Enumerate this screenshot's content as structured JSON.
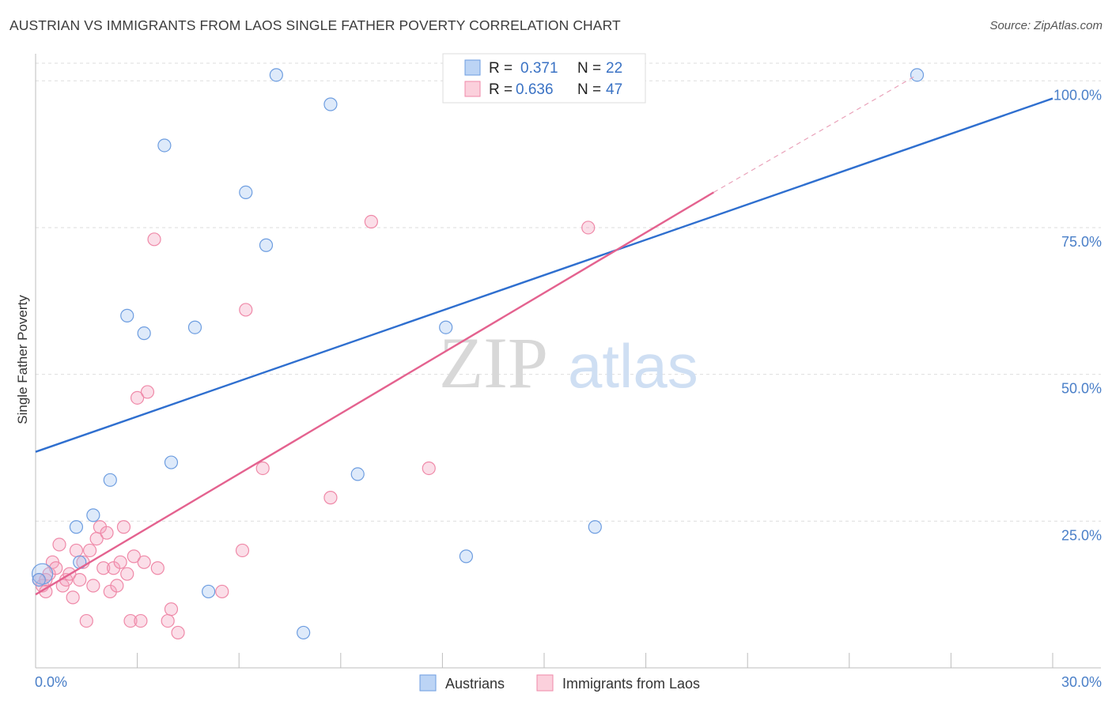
{
  "title": "AUSTRIAN VS IMMIGRANTS FROM LAOS SINGLE FATHER POVERTY CORRELATION CHART",
  "source": "Source: ZipAtlas.com",
  "watermark": {
    "zip": "ZIP",
    "atlas": "atlas"
  },
  "legend_top": [
    {
      "r_label": "R =",
      "r_value": "0.371",
      "n_label": "N =",
      "n_value": "22"
    },
    {
      "r_label": "R =",
      "r_value": "0.636",
      "n_label": "N =",
      "n_value": "47"
    }
  ],
  "legend_bottom": [
    "Austrians",
    "Immigrants from Laos"
  ],
  "colors": {
    "austrians": "#6d9de0",
    "laos": "#ef89a8",
    "austrians_line": "#2f6fcf",
    "laos_line": "#e4628f",
    "tick": "#4a7fc8"
  },
  "chart_data": {
    "type": "scatter",
    "title": "AUSTRIAN VS IMMIGRANTS FROM LAOS SINGLE FATHER POVERTY CORRELATION CHART",
    "ylabel": "Single Father Poverty",
    "xlim": [
      0,
      30
    ],
    "ylim": [
      0,
      103
    ],
    "x_tick_labels": [
      "0.0%",
      "30.0%"
    ],
    "y_ticks": [
      25,
      50,
      75,
      100
    ],
    "y_tick_labels": [
      "25.0%",
      "50.0%",
      "75.0%",
      "100.0%"
    ],
    "grid": "horizontal dashed",
    "legend_placement": "top-center",
    "series": [
      {
        "name": "Austrians",
        "r": 0.371,
        "n": 22,
        "trend": {
          "x": [
            0,
            30
          ],
          "y": [
            36.8,
            97
          ]
        },
        "points": [
          {
            "x": 0.2,
            "y": 16
          },
          {
            "x": 1.3,
            "y": 18
          },
          {
            "x": 1.2,
            "y": 24
          },
          {
            "x": 1.7,
            "y": 26
          },
          {
            "x": 2.2,
            "y": 32
          },
          {
            "x": 2.7,
            "y": 60
          },
          {
            "x": 3.2,
            "y": 57
          },
          {
            "x": 3.8,
            "y": 89
          },
          {
            "x": 4.0,
            "y": 35
          },
          {
            "x": 4.7,
            "y": 58
          },
          {
            "x": 5.1,
            "y": 13
          },
          {
            "x": 6.2,
            "y": 81
          },
          {
            "x": 6.8,
            "y": 72
          },
          {
            "x": 7.1,
            "y": 101
          },
          {
            "x": 7.9,
            "y": 6
          },
          {
            "x": 8.7,
            "y": 96
          },
          {
            "x": 9.5,
            "y": 33
          },
          {
            "x": 12.1,
            "y": 58
          },
          {
            "x": 12.7,
            "y": 19
          },
          {
            "x": 16.5,
            "y": 24
          },
          {
            "x": 26.0,
            "y": 101
          },
          {
            "x": 0.1,
            "y": 15
          }
        ]
      },
      {
        "name": "Immigrants from Laos",
        "r": 0.636,
        "n": 47,
        "trend": {
          "x": [
            0,
            20
          ],
          "y": [
            12.5,
            81
          ]
        },
        "trend_extension": {
          "x": [
            20,
            26
          ],
          "y": [
            81,
            101
          ]
        },
        "points": [
          {
            "x": 0.1,
            "y": 15
          },
          {
            "x": 0.2,
            "y": 14
          },
          {
            "x": 0.3,
            "y": 15
          },
          {
            "x": 0.4,
            "y": 16
          },
          {
            "x": 0.5,
            "y": 18
          },
          {
            "x": 0.6,
            "y": 17
          },
          {
            "x": 0.7,
            "y": 21
          },
          {
            "x": 0.8,
            "y": 14
          },
          {
            "x": 0.9,
            "y": 15
          },
          {
            "x": 1.0,
            "y": 16
          },
          {
            "x": 1.1,
            "y": 12
          },
          {
            "x": 1.2,
            "y": 20
          },
          {
            "x": 1.3,
            "y": 15
          },
          {
            "x": 1.4,
            "y": 18
          },
          {
            "x": 1.5,
            "y": 8
          },
          {
            "x": 1.6,
            "y": 20
          },
          {
            "x": 1.7,
            "y": 14
          },
          {
            "x": 1.8,
            "y": 22
          },
          {
            "x": 1.9,
            "y": 24
          },
          {
            "x": 2.0,
            "y": 17
          },
          {
            "x": 2.1,
            "y": 23
          },
          {
            "x": 2.2,
            "y": 13
          },
          {
            "x": 2.3,
            "y": 17
          },
          {
            "x": 2.4,
            "y": 14
          },
          {
            "x": 2.5,
            "y": 18
          },
          {
            "x": 2.6,
            "y": 24
          },
          {
            "x": 2.7,
            "y": 16
          },
          {
            "x": 2.8,
            "y": 8
          },
          {
            "x": 2.9,
            "y": 19
          },
          {
            "x": 3.0,
            "y": 46
          },
          {
            "x": 3.1,
            "y": 8
          },
          {
            "x": 3.2,
            "y": 18
          },
          {
            "x": 3.3,
            "y": 47
          },
          {
            "x": 3.5,
            "y": 73
          },
          {
            "x": 3.6,
            "y": 17
          },
          {
            "x": 3.9,
            "y": 8
          },
          {
            "x": 4.0,
            "y": 10
          },
          {
            "x": 4.2,
            "y": 6
          },
          {
            "x": 5.5,
            "y": 13
          },
          {
            "x": 6.1,
            "y": 20
          },
          {
            "x": 6.2,
            "y": 61
          },
          {
            "x": 6.7,
            "y": 34
          },
          {
            "x": 8.7,
            "y": 29
          },
          {
            "x": 9.9,
            "y": 76
          },
          {
            "x": 11.6,
            "y": 34
          },
          {
            "x": 16.3,
            "y": 75
          },
          {
            "x": 0.3,
            "y": 13
          }
        ]
      }
    ]
  }
}
